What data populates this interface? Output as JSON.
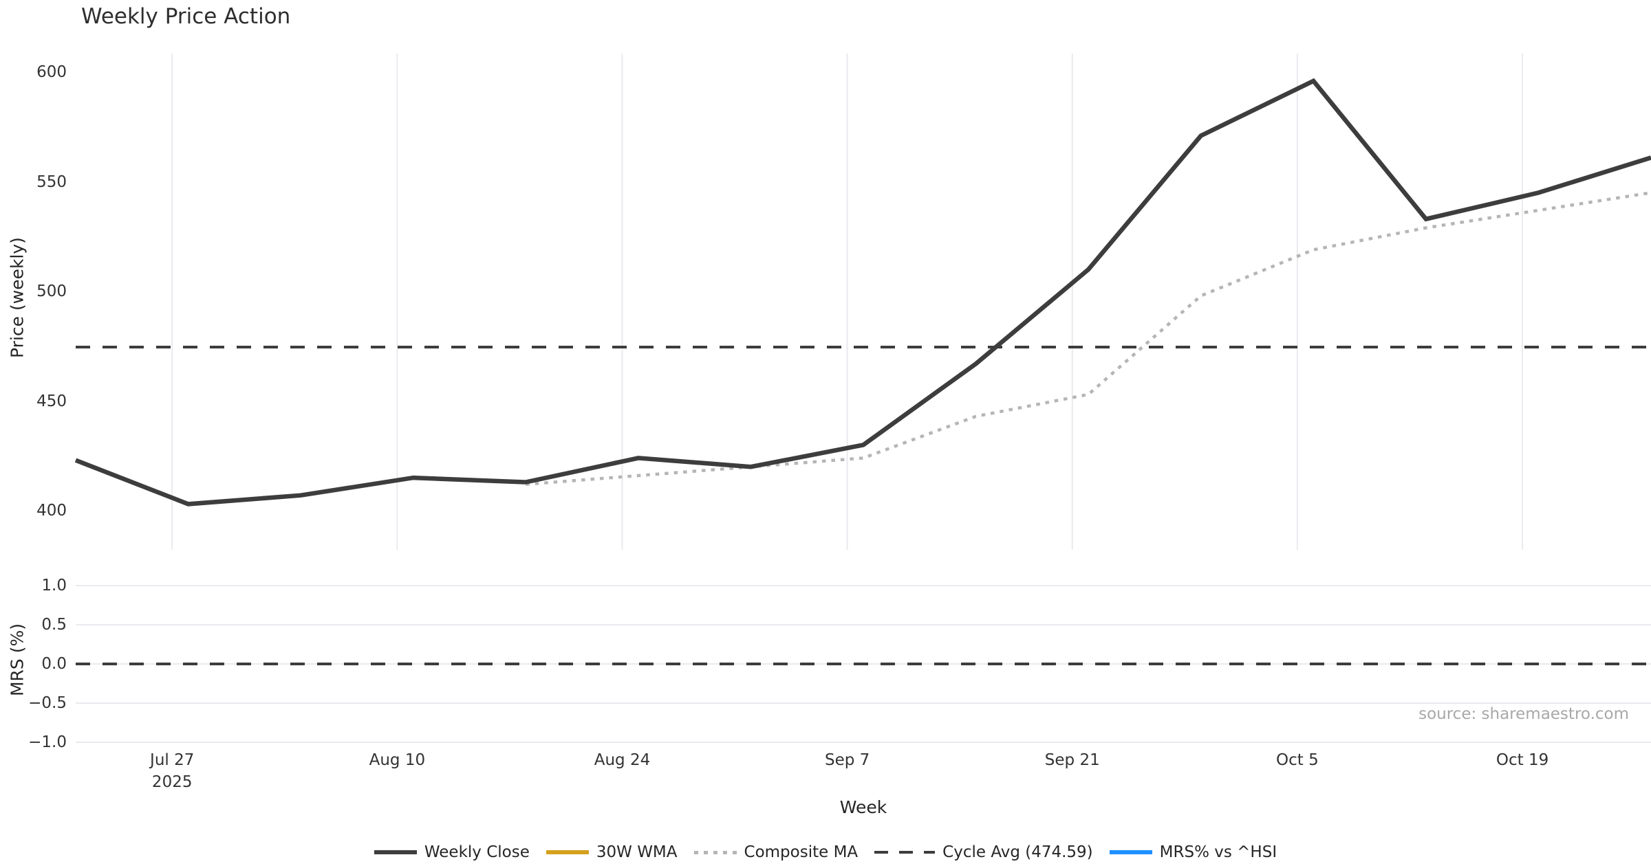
{
  "title": "Weekly Price Action",
  "source_note": "source: sharemaestro.com",
  "colors": {
    "weekly_close": "#3d3d3d",
    "wma_30w": "#d4a01e",
    "composite_ma": "#b5b5b5",
    "cycle_avg": "#3d3d3d",
    "mrs": "#1e90ff",
    "gridline": "#eaeaef",
    "text": "#262626",
    "muted": "#a8a8a8"
  },
  "axes": {
    "price_ylabel": "Price (weekly)",
    "mrs_ylabel": "MRS (%)",
    "xlabel": "Week",
    "price_ticks": [
      {
        "label": "600",
        "value": 600
      },
      {
        "label": "550",
        "value": 550
      },
      {
        "label": "500",
        "value": 500
      },
      {
        "label": "450",
        "value": 450
      },
      {
        "label": "400",
        "value": 400
      }
    ],
    "mrs_ticks": [
      {
        "label": "1.0",
        "value": 1.0
      },
      {
        "label": "0.5",
        "value": 0.5
      },
      {
        "label": "0.0",
        "value": 0.0
      },
      {
        "label": "−0.5",
        "value": -0.5
      },
      {
        "label": "−1.0",
        "value": -1.0
      }
    ],
    "x_ticks": [
      {
        "label": "Jul 27",
        "sub": "2025"
      },
      {
        "label": "Aug 10",
        "sub": ""
      },
      {
        "label": "Aug 24",
        "sub": ""
      },
      {
        "label": "Sep 7",
        "sub": ""
      },
      {
        "label": "Sep 21",
        "sub": ""
      },
      {
        "label": "Oct 5",
        "sub": ""
      },
      {
        "label": "Oct 19",
        "sub": ""
      }
    ]
  },
  "legend": [
    {
      "label": "Weekly Close",
      "style": "solid",
      "color": "#3d3d3d"
    },
    {
      "label": "30W WMA",
      "style": "solid",
      "color": "#d4a01e"
    },
    {
      "label": "Composite MA",
      "style": "dotted",
      "color": "#b5b5b5"
    },
    {
      "label": "Cycle Avg (474.59)",
      "style": "dashed",
      "color": "#3d3d3d"
    },
    {
      "label": "MRS% vs ^HSI",
      "style": "solid",
      "color": "#1e90ff"
    }
  ],
  "chart_data": [
    {
      "type": "line",
      "title": "Weekly Price Action",
      "xlabel": "Week",
      "ylabel": "Price (weekly)",
      "x": [
        "Jul 21",
        "Jul 28",
        "Aug 4",
        "Aug 11",
        "Aug 18",
        "Aug 25",
        "Sep 1",
        "Sep 8",
        "Sep 15",
        "Sep 22",
        "Sep 29",
        "Oct 6",
        "Oct 13",
        "Oct 20",
        "Oct 27"
      ],
      "x_year": "2025",
      "x_tick_labels": [
        "Jul 27\n2025",
        "Aug 10",
        "Aug 24",
        "Sep 7",
        "Sep 21",
        "Oct 5",
        "Oct 19"
      ],
      "ylim": [
        382,
        612
      ],
      "yticks": [
        400,
        450,
        500,
        550,
        600
      ],
      "grid": "vertical-only",
      "legend_position": "bottom-center",
      "series": [
        {
          "name": "Weekly Close",
          "style": "solid",
          "color": "#3d3d3d",
          "values": [
            423,
            403,
            407,
            415,
            413,
            424,
            420,
            430,
            467,
            510,
            571,
            596,
            533,
            545,
            561
          ]
        },
        {
          "name": "30W WMA",
          "style": "solid",
          "color": "#d4a01e",
          "values": [
            null,
            null,
            null,
            null,
            null,
            null,
            null,
            null,
            null,
            null,
            null,
            null,
            null,
            null,
            null
          ],
          "note": "appears in legend only; no visible data in plot"
        },
        {
          "name": "Composite MA",
          "style": "dotted",
          "color": "#b5b5b5",
          "values": [
            null,
            null,
            null,
            null,
            412,
            416,
            420,
            424,
            443,
            453,
            498,
            519,
            529,
            537,
            545
          ]
        },
        {
          "name": "Cycle Avg",
          "style": "dashed",
          "color": "#3d3d3d",
          "constant": 474.59
        }
      ]
    },
    {
      "type": "line",
      "ylabel": "MRS (%)",
      "ylim": [
        -1.05,
        1.05
      ],
      "yticks": [
        1.0,
        0.5,
        0.0,
        -0.5,
        -1.0
      ],
      "grid": "horizontal-only",
      "series": [
        {
          "name": "MRS% vs ^HSI",
          "style": "solid",
          "color": "#1e90ff",
          "values": [
            null,
            null,
            null,
            null,
            null,
            null,
            null,
            null,
            null,
            null,
            null,
            null,
            null,
            null,
            null
          ],
          "note": "appears in legend only; no visible data in plot"
        },
        {
          "name": "zero line",
          "style": "dashed",
          "color": "#3d3d3d",
          "constant": 0.0
        }
      ]
    }
  ]
}
